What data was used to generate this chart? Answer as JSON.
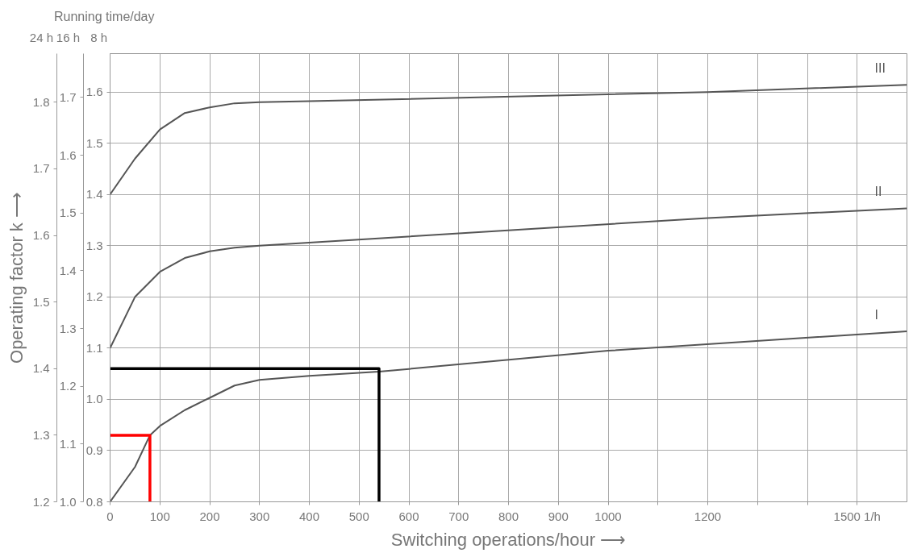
{
  "chart_data": {
    "type": "line",
    "title": "Running time/day",
    "xlabel": "Switching operations/hour ⟶",
    "ylabel": "8 h",
    "y2label": "16 h",
    "y3label": "24 h",
    "annotations": [
      "Operating factor k ⟶"
    ],
    "xlim": [
      0,
      1600
    ],
    "xticks": [
      0,
      100,
      200,
      300,
      400,
      500,
      600,
      700,
      800,
      900,
      1000,
      {
        "value": 1100,
        "label": null
      },
      1200,
      {
        "value": 1300,
        "label": null
      },
      {
        "value": 1400,
        "label": null
      },
      {
        "value": 1500,
        "label": "1500 1/h"
      }
    ],
    "ylim": [
      0.8,
      1.675
    ],
    "yticks": [
      0.8,
      0.9,
      {
        "value": 1.0,
        "label": "1.0"
      },
      1.1,
      1.2,
      1.3,
      1.4,
      1.5,
      1.6
    ],
    "y2lim": [
      1.0,
      1.776
    ],
    "y2ticks": [
      {
        "value": 1.0,
        "label": "1.0"
      },
      1.1,
      1.2,
      1.3,
      1.4,
      1.5,
      1.6,
      1.7
    ],
    "y3lim": [
      1.2,
      1.873
    ],
    "y3ticks": [
      1.2,
      1.3,
      1.4,
      1.5,
      1.6,
      1.7,
      1.8
    ],
    "grid": true,
    "marker": "none",
    "line_style": "solid",
    "series": [
      {
        "name": "III",
        "color": "#555555",
        "x": [
          0,
          50,
          100,
          150,
          200,
          250,
          300,
          400,
          1200,
          1600
        ],
        "values": [
          1.4,
          1.47,
          1.527,
          1.559,
          1.57,
          1.578,
          1.58,
          1.582,
          1.6,
          1.614
        ]
      },
      {
        "name": "II",
        "color": "#555555",
        "x": [
          0,
          50,
          100,
          150,
          200,
          250,
          300,
          1200,
          1600
        ],
        "values": [
          1.1,
          1.2,
          1.249,
          1.276,
          1.289,
          1.296,
          1.3,
          1.354,
          1.373
        ]
      },
      {
        "name": "I",
        "color": "#555555",
        "x": [
          0,
          50,
          80,
          100,
          150,
          200,
          250,
          300,
          400,
          540,
          1000,
          1600
        ],
        "values": [
          0.8,
          0.868,
          0.93,
          0.948,
          0.979,
          1.003,
          1.027,
          1.038,
          1.046,
          1.054,
          1.095,
          1.133
        ]
      },
      {
        "color": "#ff0000",
        "axis": "y3",
        "x": [
          0,
          80,
          80
        ],
        "values": [
          1.3,
          1.3,
          1.2
        ]
      },
      {
        "color": "#000000",
        "axis": "y3",
        "x": [
          0,
          540,
          540
        ],
        "values": [
          1.4,
          1.4,
          1.2
        ]
      }
    ]
  }
}
